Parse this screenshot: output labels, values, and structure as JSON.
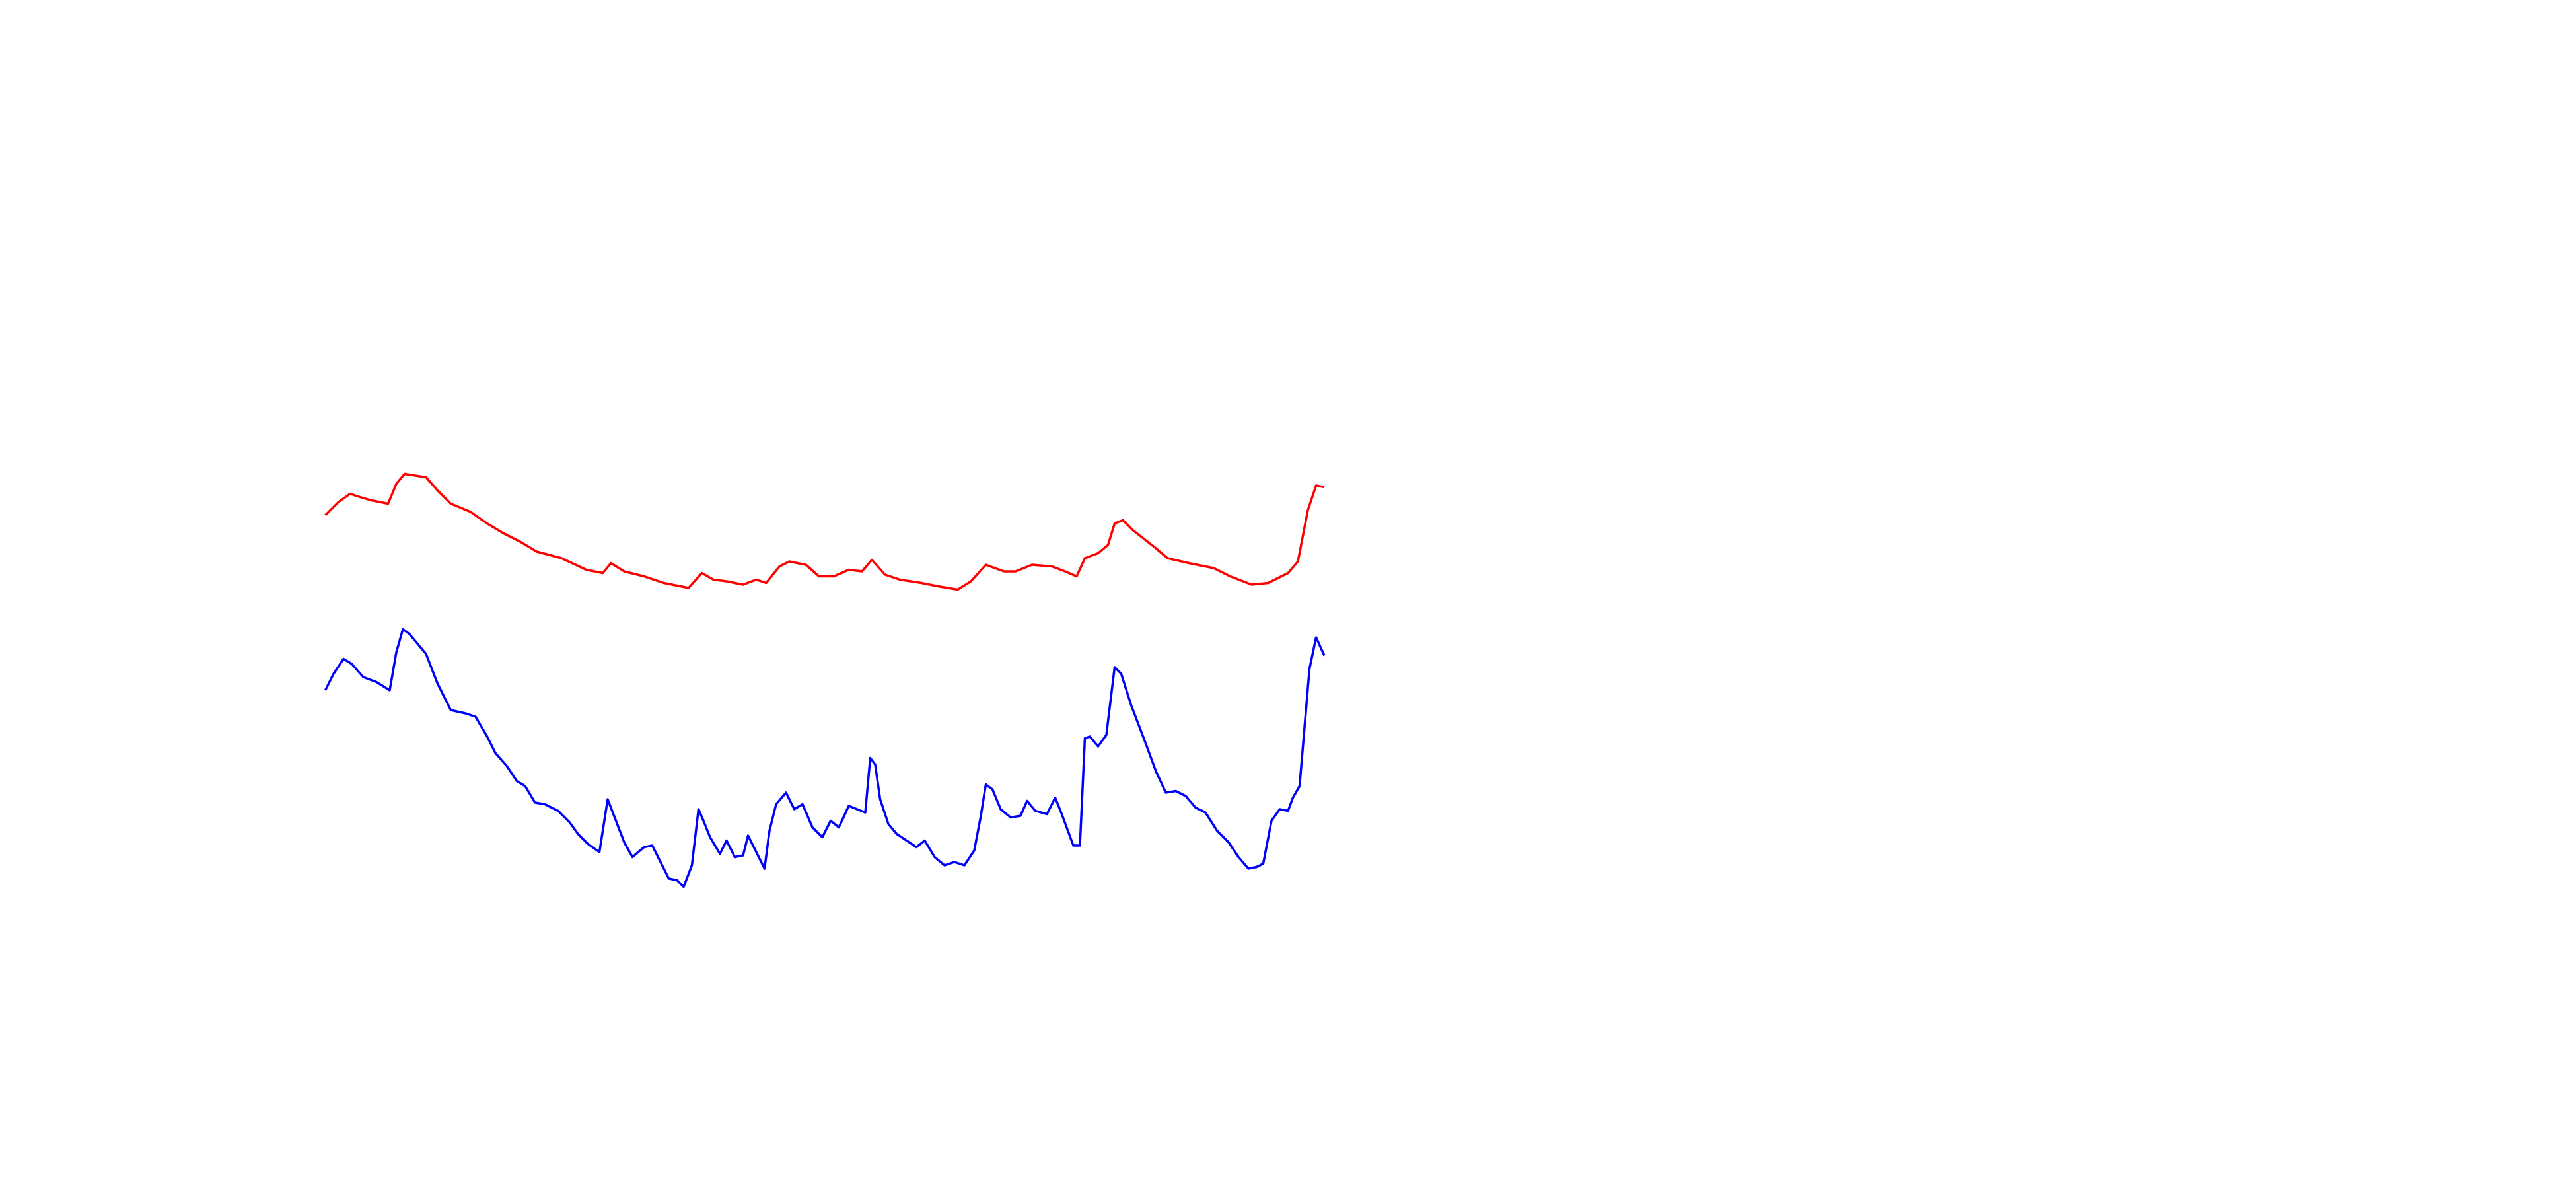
{
  "chart_data": {
    "type": "line",
    "xlim": [
      0,
      1560
    ],
    "ylim": [
      0,
      720
    ],
    "series": [
      {
        "color": "#ff0000",
        "x": [
          197,
          205,
          212,
          218,
          225,
          235,
          240,
          245,
          258,
          265,
          273,
          285,
          295,
          305,
          315,
          325,
          340,
          355,
          365,
          370,
          378,
          390,
          402,
          417,
          425,
          432,
          440,
          450,
          458,
          464,
          472,
          478,
          488,
          496,
          505,
          514,
          522,
          528,
          536,
          545,
          558,
          568,
          580,
          588,
          597,
          608,
          615,
          625,
          637,
          645,
          652,
          657,
          665,
          671,
          675,
          680,
          686,
          700,
          707,
          720,
          735,
          745,
          758,
          768,
          780,
          786,
          792,
          797,
          802
        ],
        "values": [
          408,
          416,
          421,
          419,
          417,
          415,
          427,
          433,
          431,
          423,
          415,
          410,
          403,
          397,
          392,
          386,
          382,
          375,
          373,
          379,
          374,
          371,
          367,
          364,
          373,
          369,
          368,
          366,
          369,
          367,
          377,
          380,
          378,
          371,
          371,
          375,
          374,
          381,
          372,
          369,
          367,
          365,
          363,
          368,
          378,
          374,
          374,
          378,
          377,
          374,
          371,
          382,
          385,
          390,
          403,
          405,
          399,
          388,
          382,
          379,
          376,
          371,
          366,
          367,
          373,
          380,
          411,
          426,
          425
        ]
      },
      {
        "color": "#0000ff",
        "x": [
          197,
          202,
          208,
          213,
          220,
          228,
          236,
          240,
          244,
          248,
          258,
          265,
          273,
          282,
          288,
          295,
          300,
          307,
          313,
          318,
          324,
          330,
          338,
          345,
          350,
          356,
          363,
          368,
          373,
          378,
          383,
          390,
          395,
          400,
          405,
          410,
          414,
          419,
          423,
          426,
          430,
          436,
          440,
          445,
          450,
          453,
          458,
          463,
          466,
          470,
          476,
          481,
          486,
          492,
          498,
          503,
          508,
          514,
          519,
          524,
          527,
          530,
          533,
          538,
          543,
          549,
          555,
          560,
          566,
          572,
          578,
          584,
          590,
          594,
          597,
          601,
          606,
          612,
          618,
          622,
          627,
          634,
          639,
          643,
          650,
          654,
          657,
          660,
          665,
          670,
          675,
          679,
          685,
          693,
          700,
          706,
          712,
          718,
          724,
          730,
          737,
          744,
          750,
          756,
          761,
          765,
          770,
          775,
          780,
          783,
          787,
          793,
          797,
          802
        ],
        "values": [
          302,
          312,
          321,
          318,
          310,
          307,
          302,
          325,
          339,
          336,
          324,
          306,
          290,
          288,
          286,
          274,
          264,
          256,
          247,
          244,
          234,
          233,
          229,
          222,
          215,
          209,
          204,
          236,
          223,
          210,
          201,
          207,
          208,
          198,
          188,
          187,
          183,
          196,
          230,
          223,
          213,
          203,
          211,
          201,
          202,
          214,
          204,
          194,
          217,
          233,
          240,
          230,
          233,
          219,
          213,
          223,
          219,
          232,
          230,
          228,
          261,
          257,
          236,
          221,
          215,
          211,
          207,
          211,
          201,
          196,
          198,
          196,
          205,
          226,
          245,
          242,
          230,
          225,
          226,
          235,
          229,
          227,
          237,
          227,
          208,
          208,
          273,
          274,
          268,
          275,
          316,
          312,
          293,
          272,
          253,
          240,
          241,
          238,
          231,
          228,
          217,
          210,
          201,
          194,
          195,
          197,
          223,
          230,
          229,
          237,
          244,
          315,
          334,
          323
        ]
      }
    ]
  }
}
